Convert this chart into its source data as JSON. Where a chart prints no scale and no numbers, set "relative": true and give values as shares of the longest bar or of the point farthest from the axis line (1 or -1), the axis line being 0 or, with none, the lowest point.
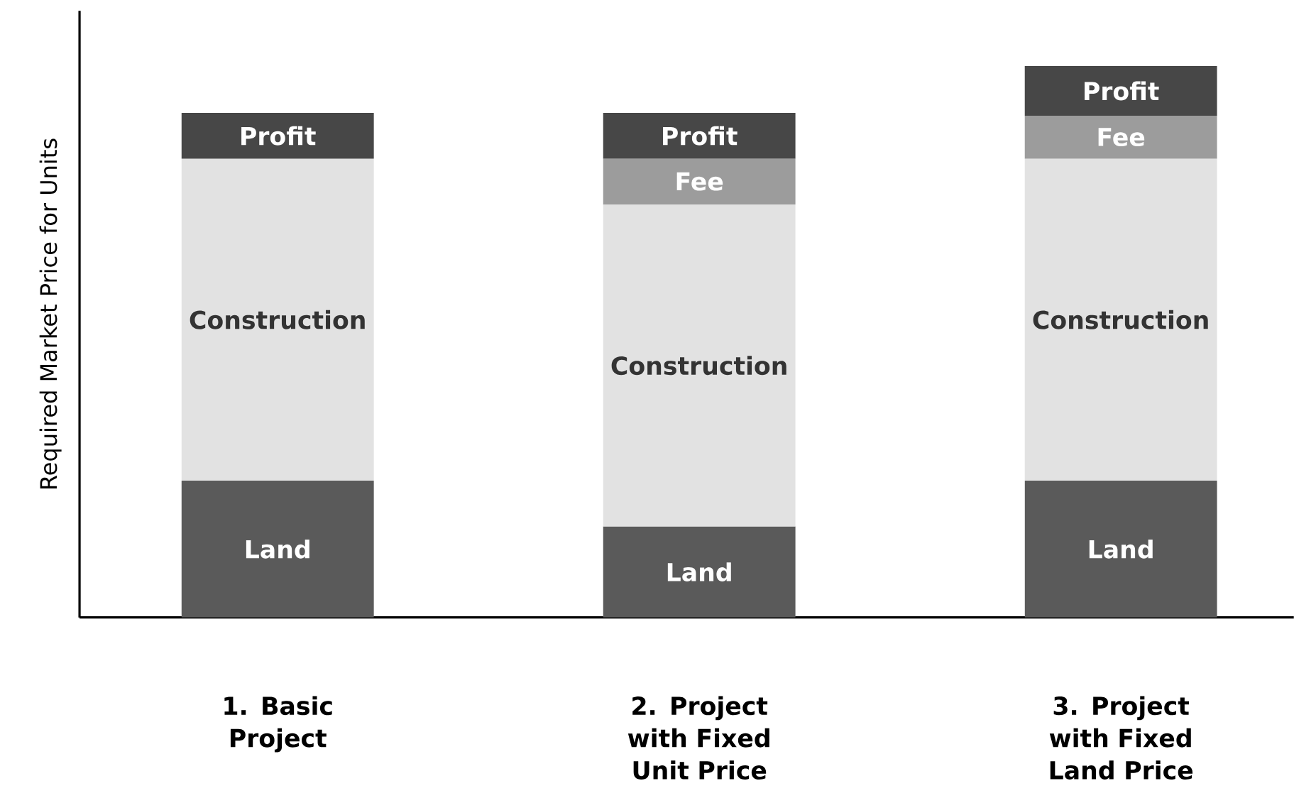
{
  "chart_data": {
    "type": "bar",
    "stacked": true,
    "relative": true,
    "ylabel": "Required Market Price for Units",
    "categories": [
      "1. Basic Project",
      "2. Project with Fixed Unit Price",
      "3. Project with Fixed Land Price"
    ],
    "series": [
      {
        "name": "Land",
        "color": "#5a5a5a",
        "values": [
          0.248,
          0.165,
          0.248
        ]
      },
      {
        "name": "Construction",
        "color": "#e2e2e2",
        "values": [
          0.584,
          0.584,
          0.584
        ]
      },
      {
        "name": "Fee",
        "color": "#9c9c9c",
        "values": [
          null,
          0.083,
          0.078
        ]
      },
      {
        "name": "Profit",
        "color": "#474747",
        "values": [
          0.083,
          0.083,
          0.09
        ]
      }
    ]
  }
}
